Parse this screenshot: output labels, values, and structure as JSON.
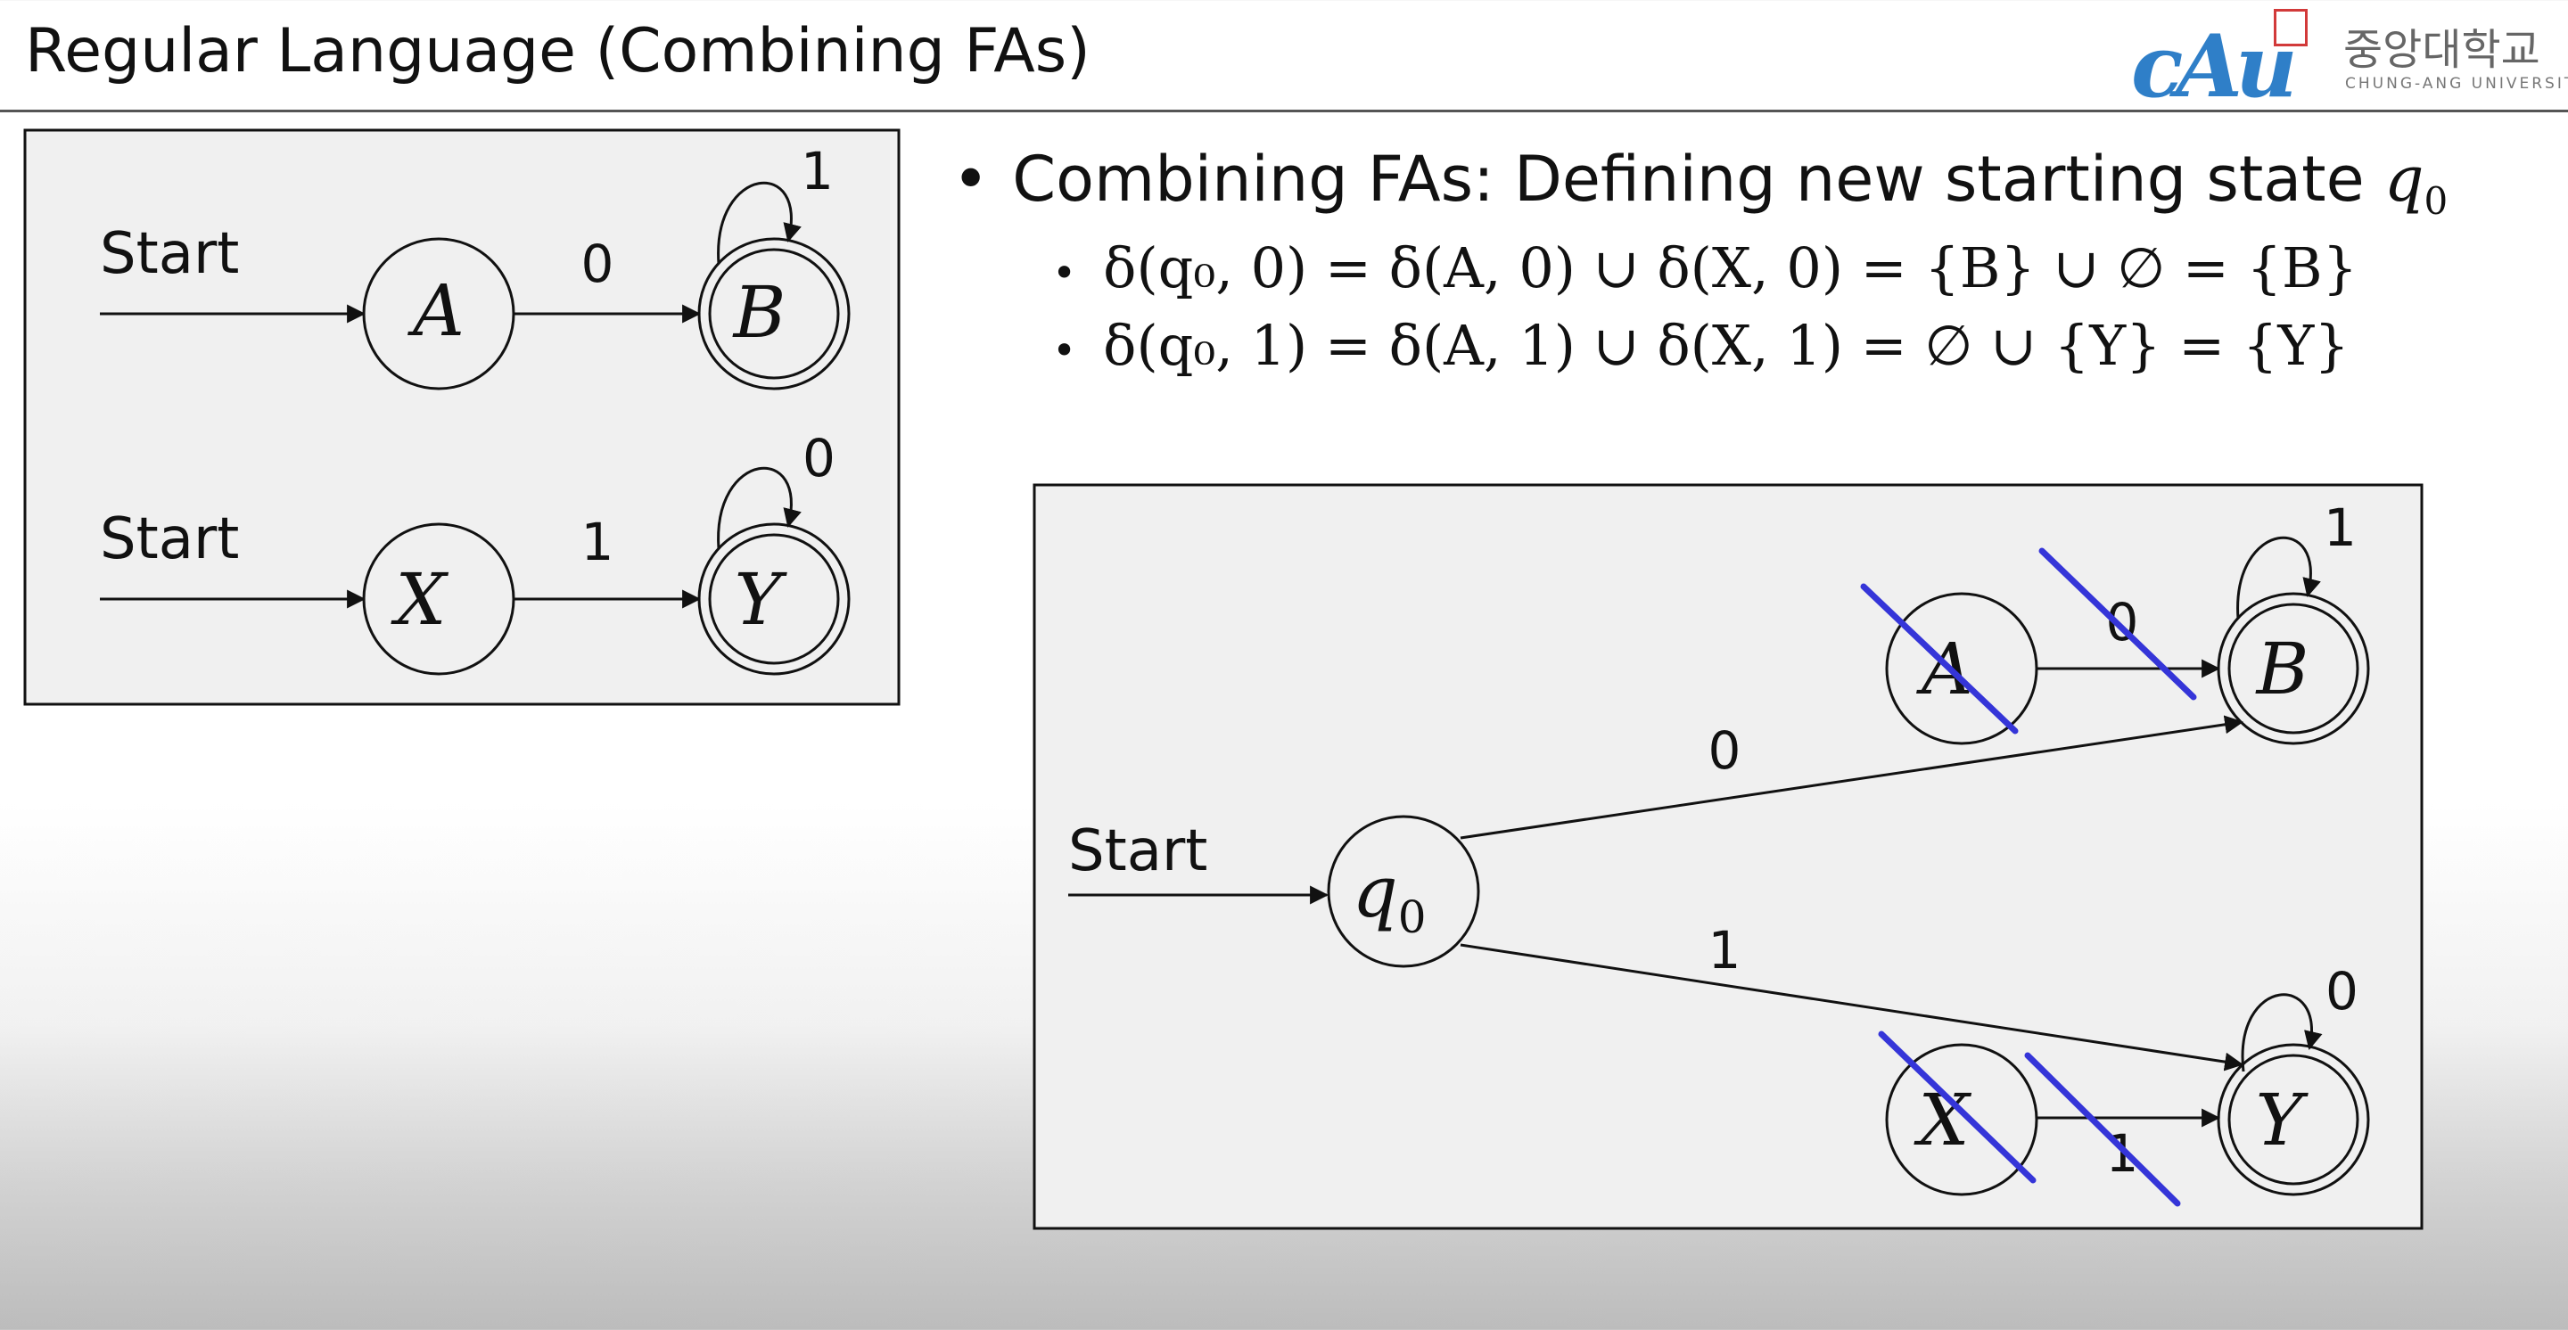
{
  "header": {
    "title": "Regular Language (Combining FAs)"
  },
  "logo": {
    "wordmark": "cAu",
    "korean_name": "중앙대학교",
    "english_name": "CHUNG-ANG UNIVERSITY"
  },
  "bullets": {
    "main": "Combining FAs: Defining new starting state",
    "main_symbol": "q",
    "main_symbol_sub": "0",
    "equations": [
      "δ(q₀, 0) = δ(A, 0) ∪ δ(X, 0) = {B} ∪ ∅ = {B}",
      "δ(q₀, 1) = δ(A, 1) ∪ δ(X, 1) = ∅ ∪ {Y} = {Y}"
    ]
  },
  "left_diagram": {
    "fa1": {
      "start_label": "Start",
      "states": [
        "A",
        "B"
      ],
      "transition_label": "0",
      "self_loop_label": "1"
    },
    "fa2": {
      "start_label": "Start",
      "states": [
        "X",
        "Y"
      ],
      "transition_label": "1",
      "self_loop_label": "0"
    }
  },
  "right_diagram": {
    "start_label": "Start",
    "new_start_state": "q",
    "new_start_state_sub": "0",
    "states": [
      "A",
      "B",
      "X",
      "Y"
    ],
    "labels": {
      "a_to_b": "0",
      "b_loop": "1",
      "q0_to_b": "0",
      "q0_to_y": "1",
      "x_to_y": "1",
      "y_loop": "0"
    },
    "strike_color": "#3535d8"
  }
}
